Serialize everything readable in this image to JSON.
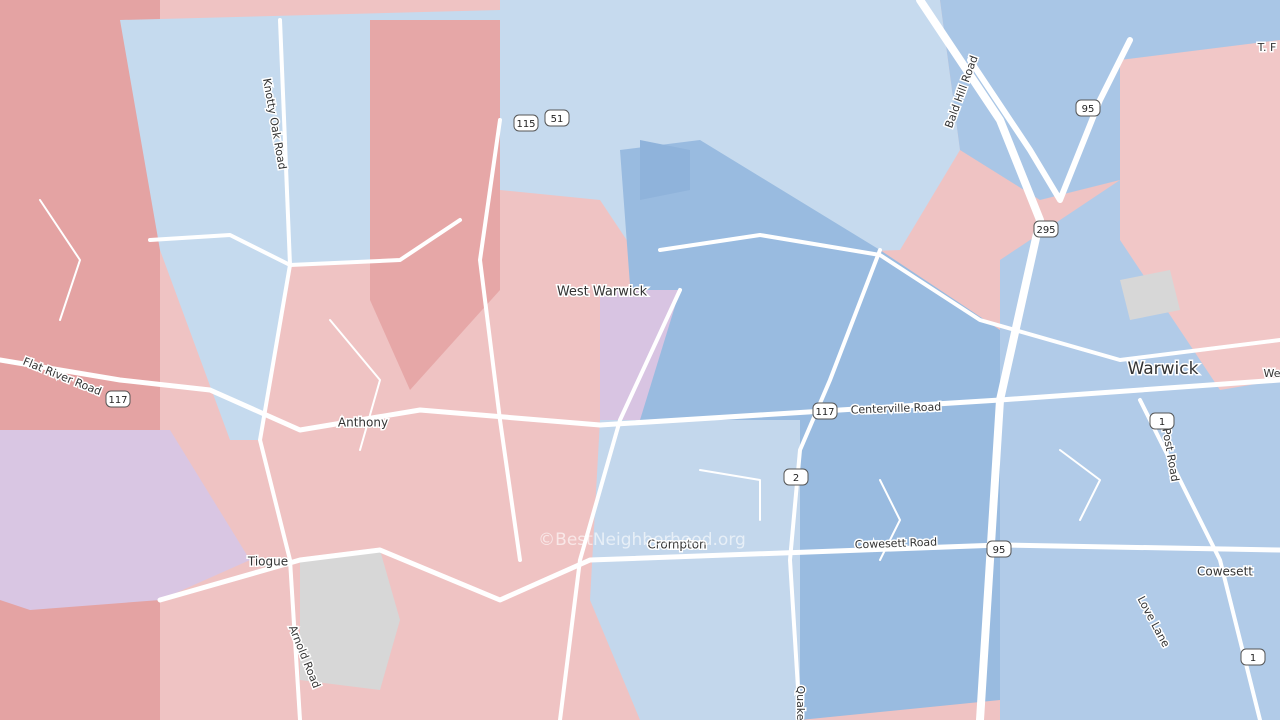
{
  "places": [
    "West Warwick",
    "Warwick",
    "Anthony",
    "Tiogue",
    "Crompton",
    "Cowesett"
  ],
  "roads": [
    "Flat River Road",
    "Knotty Oak Road",
    "Bald Hill Road",
    "Centerville Road",
    "Cowesett Road",
    "Arnold Road",
    "Post Road",
    "Love Lane",
    "Quake",
    "T. F",
    "We"
  ],
  "shields": [
    "115",
    "51",
    "117",
    "117",
    "2",
    "95",
    "95",
    "295",
    "1",
    "1"
  ],
  "watermark": "©BestNeighborhood.org"
}
